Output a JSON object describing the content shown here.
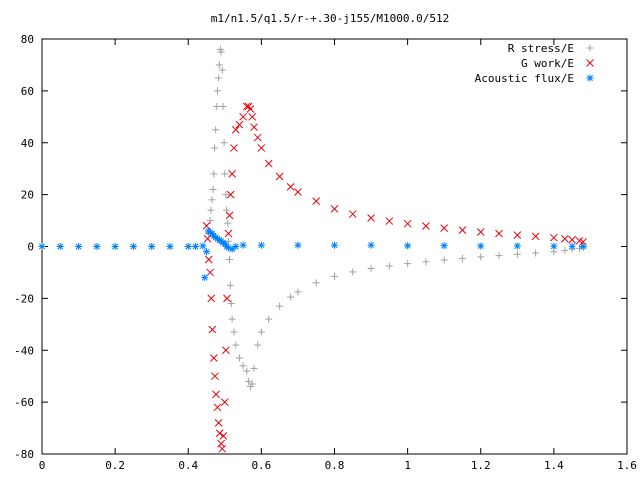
{
  "chart_data": {
    "type": "scatter",
    "title": "m1/n1.5/q1.5/r-+.30-j155/M1000.0/512",
    "xlabel": "",
    "ylabel": "",
    "xlim": [
      0,
      1.6
    ],
    "ylim": [
      -80,
      80
    ],
    "xticks": [
      "0",
      "0.2",
      "0.4",
      "0.6",
      "0.8",
      "1",
      "1.2",
      "1.4",
      "1.6"
    ],
    "yticks": [
      "80",
      "60",
      "40",
      "20",
      "0",
      "-20",
      "-40",
      "-60",
      "-80"
    ],
    "grid": false,
    "legend_position": "top-right",
    "series": [
      {
        "name": "R stress/E",
        "marker": "plus",
        "color": "#a0a0a0",
        "x": [
          0.45,
          0.455,
          0.46,
          0.462,
          0.465,
          0.468,
          0.47,
          0.472,
          0.475,
          0.478,
          0.48,
          0.483,
          0.485,
          0.488,
          0.49,
          0.493,
          0.495,
          0.498,
          0.5,
          0.503,
          0.505,
          0.508,
          0.51,
          0.513,
          0.515,
          0.518,
          0.52,
          0.525,
          0.53,
          0.54,
          0.55,
          0.56,
          0.565,
          0.57,
          0.575,
          0.58,
          0.59,
          0.6,
          0.62,
          0.65,
          0.68,
          0.7,
          0.75,
          0.8,
          0.85,
          0.9,
          0.95,
          1.0,
          1.05,
          1.1,
          1.15,
          1.2,
          1.25,
          1.3,
          1.35,
          1.4,
          1.43,
          1.45,
          1.47,
          1.48
        ],
        "y": [
          -2,
          5,
          10,
          14,
          18,
          22,
          28,
          38,
          45,
          54,
          60,
          65,
          70,
          76,
          75,
          68,
          54,
          40,
          28,
          20,
          14,
          9,
          2,
          -5,
          -15,
          -22,
          -28,
          -33,
          -38,
          -43,
          -46,
          -48,
          -52,
          -54,
          -53,
          -47,
          -38,
          -33,
          -28,
          -23,
          -19.5,
          -17.5,
          -14,
          -11.5,
          -9.8,
          -8.5,
          -7.5,
          -6.6,
          -5.9,
          -5.2,
          -4.6,
          -4,
          -3.5,
          -3,
          -2.5,
          -2,
          -1.5,
          -1,
          -0.7,
          -0.3
        ]
      },
      {
        "name": "G work/E",
        "marker": "cross",
        "color": "#e8000b",
        "x": [
          0.45,
          0.453,
          0.456,
          0.46,
          0.463,
          0.466,
          0.47,
          0.473,
          0.476,
          0.48,
          0.483,
          0.486,
          0.49,
          0.493,
          0.496,
          0.5,
          0.503,
          0.506,
          0.51,
          0.513,
          0.516,
          0.52,
          0.525,
          0.53,
          0.54,
          0.55,
          0.56,
          0.565,
          0.57,
          0.575,
          0.58,
          0.59,
          0.6,
          0.62,
          0.65,
          0.68,
          0.7,
          0.75,
          0.8,
          0.85,
          0.9,
          0.95,
          1.0,
          1.05,
          1.1,
          1.15,
          1.2,
          1.25,
          1.3,
          1.35,
          1.4,
          1.43,
          1.45,
          1.47,
          1.48
        ],
        "y": [
          8,
          3,
          -5,
          -10,
          -20,
          -32,
          -43,
          -50,
          -57,
          -62,
          -68,
          -72,
          -76,
          -78,
          -73,
          -60,
          -40,
          -20,
          5,
          12,
          20,
          28,
          38,
          45,
          47,
          50,
          54,
          54,
          53,
          50,
          46,
          42,
          38,
          32,
          27,
          23,
          21,
          17.5,
          14.5,
          12.5,
          11,
          9.8,
          8.8,
          7.9,
          7.1,
          6.3,
          5.6,
          5,
          4.4,
          3.9,
          3.4,
          3,
          2.6,
          2.2,
          1.8
        ]
      },
      {
        "name": "Acoustic flux/E",
        "marker": "star",
        "color": "#0080ff",
        "x": [
          0.0,
          0.05,
          0.1,
          0.15,
          0.2,
          0.25,
          0.3,
          0.35,
          0.4,
          0.42,
          0.44,
          0.445,
          0.45,
          0.455,
          0.46,
          0.465,
          0.47,
          0.475,
          0.48,
          0.485,
          0.49,
          0.495,
          0.5,
          0.505,
          0.51,
          0.52,
          0.53,
          0.55,
          0.6,
          0.7,
          0.8,
          0.9,
          1.0,
          1.1,
          1.2,
          1.3,
          1.4,
          1.45,
          1.48
        ],
        "y": [
          0,
          0,
          0,
          0,
          0,
          0,
          0,
          0,
          0,
          0,
          0.2,
          -12,
          -2,
          6,
          5.5,
          5,
          4,
          3.5,
          3,
          2.5,
          2,
          1.5,
          1,
          0,
          -0.5,
          -1,
          0,
          0.5,
          0.5,
          0.5,
          0.5,
          0.5,
          0.3,
          0.3,
          0.2,
          0.2,
          0.1,
          0.1,
          0
        ]
      }
    ]
  }
}
